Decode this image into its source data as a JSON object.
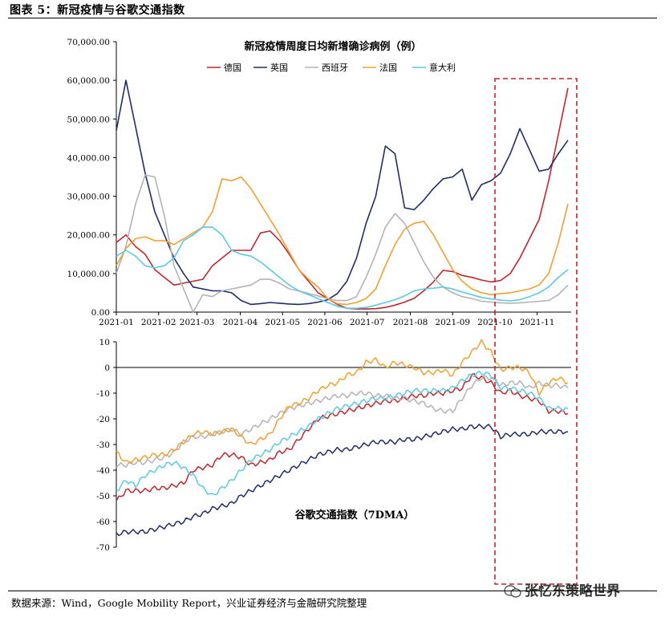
{
  "figure_title": "图表 5：新冠疫情与谷歌交通指数",
  "source_note": "数据来源：Wind，Google Mobility Report，兴业证券经济与金融研究院整理",
  "watermark": "张忆东策略世界",
  "colors": {
    "德国": "#c0272d",
    "英国": "#1f2d6b",
    "西班牙": "#b3b3b3",
    "法国": "#f0a030",
    "意大利": "#5bc8e6",
    "highlight": "#c0272d"
  },
  "chart_data": [
    {
      "type": "line",
      "title": "新冠疫情周度日均新增确诊病例（例）",
      "x_range": [
        0,
        47
      ],
      "x_tick_positions": [
        0,
        4.4,
        8.4,
        12.9,
        17.3,
        21.7,
        26.1,
        30.6,
        35.0,
        39.4,
        43.8
      ],
      "x_tick_labels": [
        "2021-01",
        "2021-02",
        "2021-03",
        "2021-04",
        "2021-05",
        "2021-06",
        "2021-07",
        "2021-08",
        "2021-09",
        "2021-10",
        "2021-11"
      ],
      "y_ticks": [
        0,
        10000,
        20000,
        30000,
        40000,
        50000,
        60000,
        70000
      ],
      "y_tick_labels": [
        "0.00",
        "10,000.00",
        "20,000.00",
        "30,000.00",
        "40,000.00",
        "50,000.00",
        "60,000.00",
        "70,000.00"
      ],
      "ylim": [
        0,
        70000
      ],
      "legend": [
        "德国",
        "英国",
        "西班牙",
        "法国",
        "意大利"
      ],
      "series": [
        {
          "name": "德国",
          "values": [
            18000,
            20000,
            17000,
            15000,
            11000,
            9000,
            7000,
            7500,
            8000,
            8500,
            12000,
            14000,
            16000,
            16000,
            16000,
            20500,
            21000,
            18500,
            15000,
            11000,
            8000,
            5000,
            3500,
            2000,
            1000,
            800,
            800,
            900,
            1200,
            1800,
            2600,
            3600,
            5500,
            7800,
            10800,
            10500,
            9500,
            9000,
            8300,
            7800,
            8200,
            10000,
            14000,
            19000,
            24000,
            34000,
            46000,
            58000
          ]
        },
        {
          "name": "英国",
          "values": [
            47000,
            60000,
            48000,
            36000,
            26000,
            20000,
            14000,
            10000,
            6500,
            6000,
            5500,
            5500,
            5000,
            3000,
            2000,
            2200,
            2500,
            2300,
            2100,
            2000,
            2200,
            2600,
            3200,
            4800,
            8000,
            14000,
            23000,
            30000,
            43000,
            41000,
            27000,
            26500,
            29000,
            32000,
            34500,
            35000,
            37000,
            29000,
            33000,
            34000,
            36000,
            41000,
            47500,
            42000,
            36500,
            37000,
            41000,
            44500
          ]
        },
        {
          "name": "西班牙",
          "values": [
            10000,
            17000,
            28000,
            35500,
            35000,
            25000,
            12000,
            6000,
            0,
            4500,
            4000,
            5500,
            6000,
            6500,
            7000,
            8500,
            8500,
            7500,
            6000,
            5500,
            4800,
            4200,
            3500,
            3000,
            3000,
            4000,
            9000,
            15000,
            22000,
            25500,
            23000,
            18000,
            13000,
            9000,
            6500,
            5000,
            4000,
            3500,
            2800,
            2600,
            2400,
            2300,
            2400,
            2600,
            2800,
            3000,
            4500,
            7000
          ]
        },
        {
          "name": "法国",
          "values": [
            12000,
            16500,
            19000,
            19500,
            18500,
            18500,
            17500,
            19000,
            20500,
            22000,
            26000,
            34500,
            34000,
            35000,
            32000,
            28000,
            24000,
            20000,
            15500,
            11000,
            8500,
            6500,
            3500,
            2200,
            2000,
            2500,
            3500,
            6000,
            12000,
            17500,
            21500,
            23000,
            23500,
            20000,
            15500,
            11000,
            8000,
            6000,
            5000,
            4500,
            4800,
            5000,
            5500,
            6000,
            7000,
            10000,
            18000,
            28000
          ]
        },
        {
          "name": "意大利",
          "values": [
            14500,
            16000,
            14500,
            12000,
            11500,
            12000,
            14000,
            18500,
            20000,
            22000,
            22000,
            20000,
            16000,
            15000,
            14500,
            13000,
            11000,
            9000,
            7000,
            5500,
            4500,
            3500,
            2500,
            1500,
            1000,
            1000,
            1200,
            1800,
            2500,
            3200,
            4200,
            5500,
            6000,
            6200,
            6500,
            6000,
            5200,
            4500,
            3800,
            3400,
            3100,
            2900,
            3200,
            4000,
            5000,
            6500,
            9000,
            11000
          ]
        }
      ]
    },
    {
      "type": "line",
      "title": "谷歌交通指数（7DMA）",
      "x_range": [
        0,
        47
      ],
      "y_ticks": [
        -70,
        -60,
        -50,
        -40,
        -30,
        -20,
        -10,
        0,
        10
      ],
      "y_tick_labels": [
        "-70",
        "-60",
        "-50",
        "-40",
        "-30",
        "-20",
        "-10",
        "0",
        "10"
      ],
      "ylim": [
        -70,
        10
      ],
      "series": [
        {
          "name": "德国",
          "values": [
            -52,
            -48,
            -48,
            -48,
            -47,
            -47,
            -46,
            -45,
            -40,
            -39,
            -38,
            -34,
            -34,
            -35,
            -38,
            -37,
            -36,
            -33,
            -32,
            -28,
            -24,
            -20,
            -19,
            -18,
            -17,
            -16,
            -15,
            -14,
            -13,
            -13,
            -12,
            -11,
            -11,
            -10,
            -10,
            -9,
            -8,
            -3,
            -4,
            -6,
            -10,
            -9,
            -11,
            -12,
            -13,
            -17,
            -17,
            -18
          ]
        },
        {
          "name": "英国",
          "values": [
            -65,
            -64,
            -64,
            -64,
            -63,
            -62,
            -61,
            -60,
            -58,
            -57,
            -55,
            -54,
            -53,
            -50,
            -48,
            -46,
            -44,
            -42,
            -40,
            -38,
            -36,
            -34,
            -33,
            -32,
            -32,
            -31,
            -30,
            -29,
            -29,
            -29,
            -28,
            -28,
            -27,
            -26,
            -25,
            -24,
            -24,
            -23,
            -23,
            -23,
            -27,
            -26,
            -26,
            -26,
            -25,
            -25,
            -25,
            -25
          ]
        },
        {
          "name": "西班牙",
          "values": [
            -38,
            -38,
            -37,
            -37,
            -36,
            -35,
            -33,
            -29,
            -27,
            -27,
            -26,
            -25,
            -24,
            -26,
            -24,
            -22,
            -20,
            -18,
            -16,
            -15,
            -14,
            -13,
            -12,
            -11,
            -11,
            -10,
            -10,
            -11,
            -11,
            -12,
            -12,
            -13,
            -14,
            -16,
            -17,
            -17,
            -12,
            -7,
            -4,
            -4,
            -7,
            -6,
            -6,
            -8,
            -6,
            -7,
            -7,
            -8
          ]
        },
        {
          "name": "法国",
          "values": [
            -33,
            -37,
            -36,
            -35,
            -34,
            -34,
            -32,
            -29,
            -26,
            -25,
            -26,
            -25,
            -24,
            -27,
            -30,
            -28,
            -26,
            -20,
            -15,
            -14,
            -12,
            -9,
            -7,
            -6,
            -3,
            -2,
            2,
            3,
            0,
            2,
            1,
            0,
            -2,
            -2,
            -1,
            -3,
            2,
            6,
            10,
            6,
            -1,
            0,
            0,
            -2,
            -10,
            -6,
            -4,
            -6
          ]
        },
        {
          "name": "意大利",
          "values": [
            -48,
            -44,
            -46,
            -42,
            -40,
            -38,
            -37,
            -39,
            -42,
            -47,
            -50,
            -47,
            -44,
            -40,
            -36,
            -34,
            -32,
            -29,
            -27,
            -25,
            -23,
            -20,
            -18,
            -16,
            -15,
            -14,
            -13,
            -12,
            -12,
            -11,
            -10,
            -9,
            -9,
            -9,
            -9,
            -8,
            -5,
            -3,
            -2,
            -3,
            -8,
            -8,
            -9,
            -10,
            -12,
            -16,
            -16,
            -16
          ]
        }
      ]
    }
  ]
}
